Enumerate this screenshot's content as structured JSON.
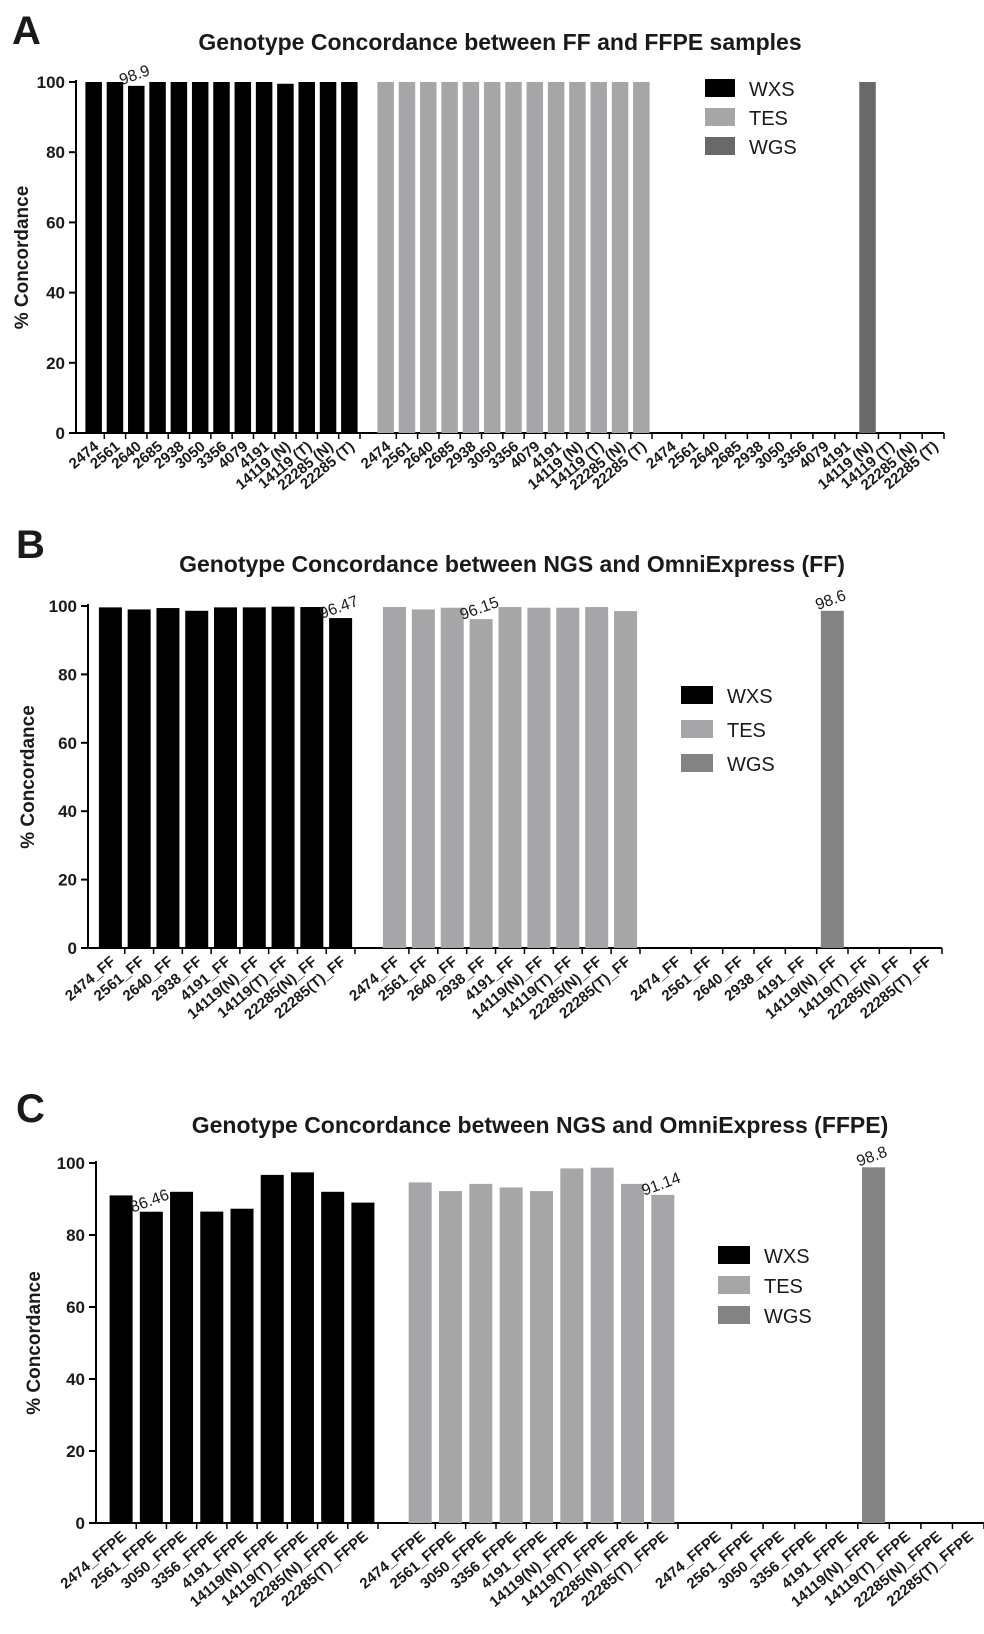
{
  "chart_data": [
    {
      "type": "bar",
      "panel_letter": "A",
      "title": "Genotype Concordance between FF and FFPE samples",
      "xlabel": "",
      "ylabel": "% Concordance",
      "ylim": [
        0,
        100
      ],
      "yticks": [
        0,
        20,
        40,
        60,
        80,
        100
      ],
      "legend_position": "top-right",
      "grid": false,
      "groups": [
        {
          "name": "WXS",
          "color": "#000000",
          "categories": [
            "2474",
            "2561",
            "2640",
            "2685",
            "2938",
            "3050",
            "3356",
            "4079",
            "4191",
            "14119 (N)",
            "14119 (T)",
            "22285 (N)",
            "22285 (T)"
          ],
          "values": [
            100,
            100,
            98.9,
            100,
            100,
            100,
            100,
            100,
            100,
            99.5,
            100,
            100,
            100
          ],
          "labels": {
            "2": "98.9"
          }
        },
        {
          "name": "TES",
          "color": "#a6a6a8",
          "categories": [
            "2474",
            "2561",
            "2640",
            "2685",
            "2938",
            "3050",
            "3356",
            "4079",
            "4191",
            "14119 (N)",
            "14119 (T)",
            "22285 (N)",
            "22285 (T)"
          ],
          "values": [
            100,
            100,
            100,
            100,
            100,
            100,
            100,
            100,
            100,
            100,
            100,
            100,
            100
          ],
          "labels": {}
        },
        {
          "name": "WGS",
          "color": "#696969",
          "categories": [
            "2474",
            "2561",
            "2640",
            "2685",
            "2938",
            "3050",
            "3356",
            "4079",
            "4191",
            "14119 (N)",
            "14119 (T)",
            "22285 (N)",
            "22285 (T)"
          ],
          "values": [
            null,
            null,
            null,
            null,
            null,
            null,
            null,
            null,
            null,
            100,
            null,
            null,
            null
          ],
          "labels": {}
        }
      ]
    },
    {
      "type": "bar",
      "panel_letter": "B",
      "title": "Genotype Concordance between NGS and OmniExpress  (FF)",
      "xlabel": "",
      "ylabel": "% Concordance",
      "ylim": [
        0,
        100
      ],
      "yticks": [
        0,
        20,
        40,
        60,
        80,
        100
      ],
      "legend_position": "right",
      "grid": false,
      "groups": [
        {
          "name": "WXS",
          "color": "#000000",
          "categories": [
            "2474_FF",
            "2561_FF",
            "2640_FF",
            "2938_FF",
            "4191_FF",
            "14119(N)_FF",
            "14119(T)_FF",
            "22285(N)_FF",
            "22285(T)_FF"
          ],
          "values": [
            99.6,
            99.0,
            99.4,
            98.6,
            99.6,
            99.6,
            99.8,
            99.7,
            96.47
          ],
          "labels": {
            "8": "96.47"
          }
        },
        {
          "name": "TES",
          "color": "#a6a6a8",
          "categories": [
            "2474_FF",
            "2561_FF",
            "2640_FF",
            "2938_FF",
            "4191_FF",
            "14119(N)_FF",
            "14119(T)_FF",
            "22285(N)_FF",
            "22285(T)_FF"
          ],
          "values": [
            99.7,
            99.0,
            99.5,
            96.15,
            99.7,
            99.5,
            99.5,
            99.7,
            98.5
          ],
          "labels": {
            "3": "96.15"
          }
        },
        {
          "name": "WGS",
          "color": "#838383",
          "categories": [
            "2474_FF",
            "2561_FF",
            "2640_FF",
            "2938_FF",
            "4191_FF",
            "14119(N)_FF",
            "14119(T)_FF",
            "22285(N)_FF",
            "22285(T)_FF"
          ],
          "values": [
            null,
            null,
            null,
            null,
            null,
            98.6,
            null,
            null,
            null
          ],
          "labels": {
            "5": "98.6"
          }
        }
      ]
    },
    {
      "type": "bar",
      "panel_letter": "C",
      "title": "Genotype Concordance between NGS and OmniExpress  (FFPE)",
      "xlabel": "",
      "ylabel": "% Concordance",
      "ylim": [
        0,
        100
      ],
      "yticks": [
        0,
        20,
        40,
        60,
        80,
        100
      ],
      "legend_position": "right",
      "grid": false,
      "groups": [
        {
          "name": "WXS",
          "color": "#000000",
          "categories": [
            "2474_FFPE",
            "2561_FFPE",
            "3050_FFPE",
            "3356_FFPE",
            "4191_FFPE",
            "14119(N)_FFPE",
            "14119(T)_FFPE",
            "22285(N)_FFPE",
            "22285(T)_FFPE"
          ],
          "values": [
            91.0,
            86.46,
            92.0,
            86.5,
            87.3,
            96.7,
            97.4,
            92.0,
            89.0
          ],
          "labels": {
            "1": "86.46"
          }
        },
        {
          "name": "TES",
          "color": "#a6a6a8",
          "categories": [
            "2474_FFPE",
            "2561_FFPE",
            "3050_FFPE",
            "3356_FFPE",
            "4191_FFPE",
            "14119(N)_FFPE",
            "14119(T)_FFPE",
            "22285(N)_FFPE",
            "22285(T)_FFPE"
          ],
          "values": [
            94.6,
            92.2,
            94.2,
            93.2,
            92.2,
            98.5,
            98.7,
            94.2,
            91.14
          ],
          "labels": {
            "8": "91.14"
          }
        },
        {
          "name": "WGS",
          "color": "#838383",
          "categories": [
            "2474_FFPE",
            "2561_FFPE",
            "3050_FFPE",
            "3356_FFPE",
            "4191_FFPE",
            "14119(N)_FFPE",
            "14119(T)_FFPE",
            "22285(N)_FFPE",
            "22285(T)_FFPE"
          ],
          "values": [
            null,
            null,
            null,
            null,
            null,
            98.8,
            null,
            null,
            null
          ],
          "labels": {
            "5": "98.8"
          }
        }
      ]
    }
  ]
}
